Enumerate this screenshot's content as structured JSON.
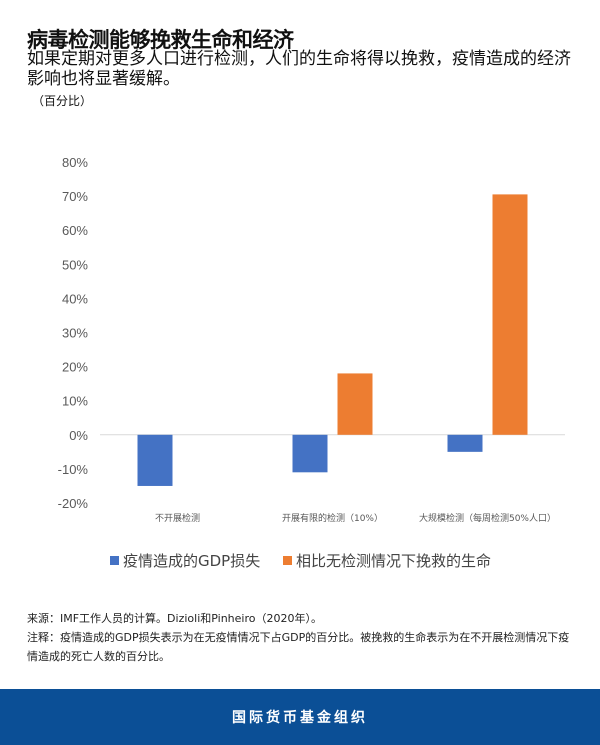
{
  "title": "病毒检测能够挽救生命和经济",
  "subtitle": "如果定期对更多人口进行检测，人们的生命将得以挽救，疫情造成的经济影响也将显著缓解。",
  "unit": "（百分比）",
  "chart_data": {
    "type": "bar",
    "categories": [
      "不开展检测",
      "开展有限的检测（10%）",
      "大规模检测（每周检测50%人口）"
    ],
    "series": [
      {
        "name": "疫情造成的GDP损失",
        "color": "#4472c4",
        "values": [
          -15,
          -11,
          -5
        ]
      },
      {
        "name": "相比无检测情况下挽救的生命",
        "color": "#ed7d31",
        "values": [
          0,
          18,
          70.5
        ]
      }
    ],
    "ylim": [
      -20,
      80
    ],
    "yticks": [
      "80%",
      "70%",
      "60%",
      "50%",
      "40%",
      "30%",
      "20%",
      "10%",
      "0%",
      "-10%",
      "-20%"
    ],
    "grid": false,
    "legend": "bottom"
  },
  "notes": {
    "source": "来源：IMF工作人员的计算。Dizioli和Pinheiro（2020年）。",
    "note": "注释：疫情造成的GDP损失表示为在无疫情情况下占GDP的百分比。被挽救的生命表示为在不开展检测情况下疫情造成的死亡人数的百分比。"
  },
  "footer": "国际货币基金组织"
}
